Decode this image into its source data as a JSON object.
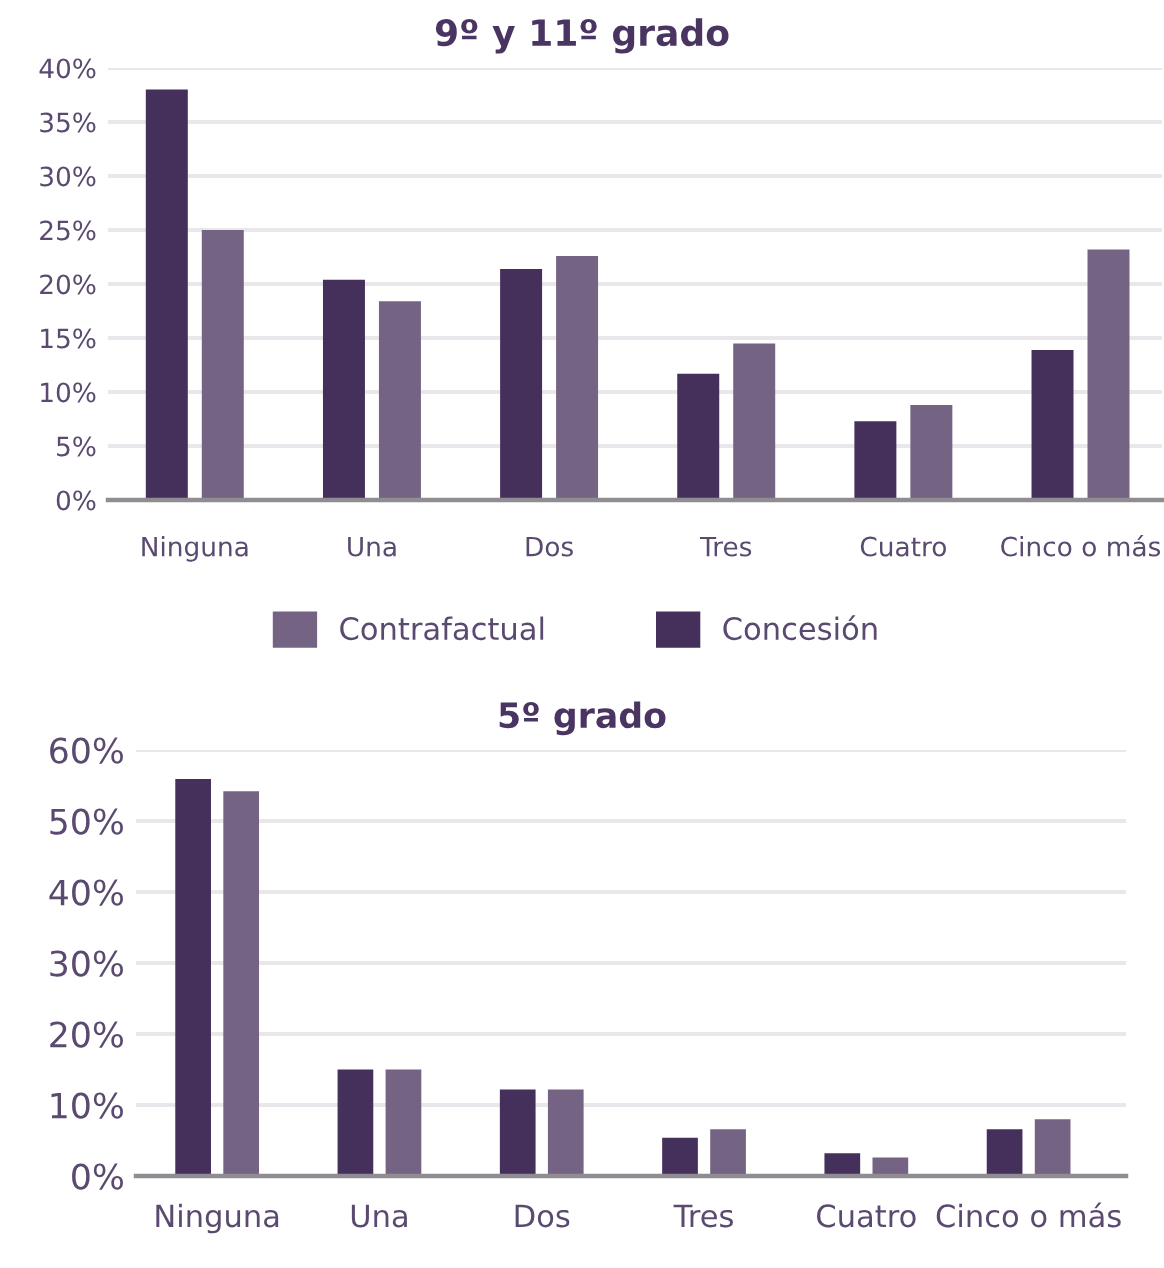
{
  "chart_data": [
    {
      "type": "bar",
      "title": "9º y 11º grado",
      "categories": [
        "Ninguna",
        "Una",
        "Dos",
        "Tres",
        "Cuatro",
        "Cinco o más"
      ],
      "series": [
        {
          "name": "Concesión",
          "color": "#452f5b",
          "values": [
            38,
            20.4,
            21.4,
            11.7,
            7.3,
            13.9
          ]
        },
        {
          "name": "Contrafactual",
          "color": "#756383",
          "values": [
            25,
            18.4,
            22.6,
            14.5,
            8.8,
            23.2
          ]
        }
      ],
      "ylim": [
        0,
        40
      ],
      "yticks": [
        {
          "value": 0,
          "label": "0%"
        },
        {
          "value": 5,
          "label": "5%"
        },
        {
          "value": 10,
          "label": "10%"
        },
        {
          "value": 15,
          "label": "15%"
        },
        {
          "value": 20,
          "label": "20%"
        },
        {
          "value": 25,
          "label": "25%"
        },
        {
          "value": 30,
          "label": "30%"
        },
        {
          "value": 35,
          "label": "35%"
        },
        {
          "value": 40,
          "label": "40%"
        }
      ],
      "grid": "y",
      "legend": "bottom"
    },
    {
      "type": "bar",
      "title": "5º grado",
      "categories": [
        "Ninguna",
        "Una",
        "Dos",
        "Tres",
        "Cuatro",
        "Cinco o más"
      ],
      "series": [
        {
          "color": "#452f5b",
          "values": [
            55.9,
            15,
            12.2,
            5.4,
            3.2,
            6.6
          ]
        },
        {
          "color": "#756383",
          "values": [
            54.2,
            15,
            12.2,
            6.6,
            2.6,
            8
          ]
        }
      ],
      "ylim": [
        0,
        60
      ],
      "yticks": [
        {
          "value": 0,
          "label": "0%"
        },
        {
          "value": 10,
          "label": "10%"
        },
        {
          "value": 20,
          "label": "20%"
        },
        {
          "value": 30,
          "label": "30%"
        },
        {
          "value": 40,
          "label": "40%"
        },
        {
          "value": 50,
          "label": "50%"
        },
        {
          "value": 60,
          "label": "60%"
        }
      ],
      "grid": "y"
    }
  ]
}
